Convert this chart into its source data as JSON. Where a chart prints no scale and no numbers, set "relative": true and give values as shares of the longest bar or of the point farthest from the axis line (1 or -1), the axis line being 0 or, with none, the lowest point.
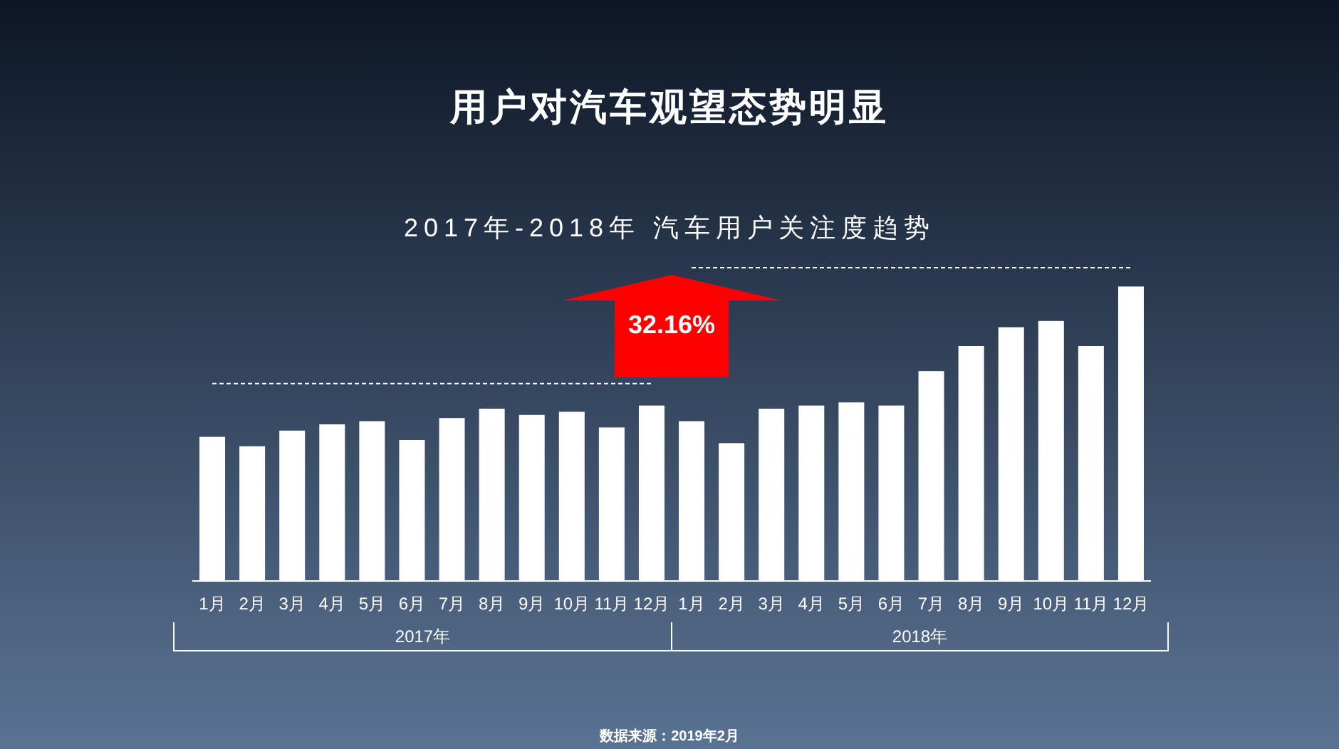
{
  "chart_data": {
    "type": "bar",
    "title": "用户对汽车观望态势明显",
    "subtitle": "2017年-2018年 汽车用户关注度趋势",
    "relative": true,
    "categories": [
      "1月",
      "2月",
      "3月",
      "4月",
      "5月",
      "6月",
      "7月",
      "8月",
      "9月",
      "10月",
      "11月",
      "12月",
      "1月",
      "2月",
      "3月",
      "4月",
      "5月",
      "6月",
      "7月",
      "8月",
      "9月",
      "10月",
      "11月",
      "12月"
    ],
    "series": [
      {
        "color": "#ffffff",
        "values": [
          0.46,
          0.43,
          0.48,
          0.5,
          0.51,
          0.45,
          0.52,
          0.55,
          0.53,
          0.54,
          0.49,
          0.56,
          0.51,
          0.44,
          0.55,
          0.56,
          0.57,
          0.56,
          0.67,
          0.75,
          0.81,
          0.83,
          0.75,
          0.94
        ]
      },
      {
        "type": "line",
        "color": "#ffffff",
        "line_style": "dashed",
        "values": [
          0.63,
          0.63,
          0.63,
          0.63,
          0.63,
          0.63,
          0.63,
          0.63,
          0.63,
          0.63,
          0.63,
          0.63,
          null,
          null,
          null,
          null,
          null,
          null,
          null,
          null,
          null,
          null,
          null,
          null
        ]
      },
      {
        "type": "line",
        "color": "#ffffff",
        "line_style": "dashed",
        "values": [
          null,
          null,
          null,
          null,
          null,
          null,
          null,
          null,
          null,
          null,
          null,
          null,
          1,
          1,
          1,
          1,
          1,
          1,
          1,
          1,
          1,
          1,
          1,
          1
        ]
      }
    ],
    "annotations": [
      "32.16%",
      "2017年",
      "2018年",
      "数据来源：2019年2月"
    ]
  }
}
